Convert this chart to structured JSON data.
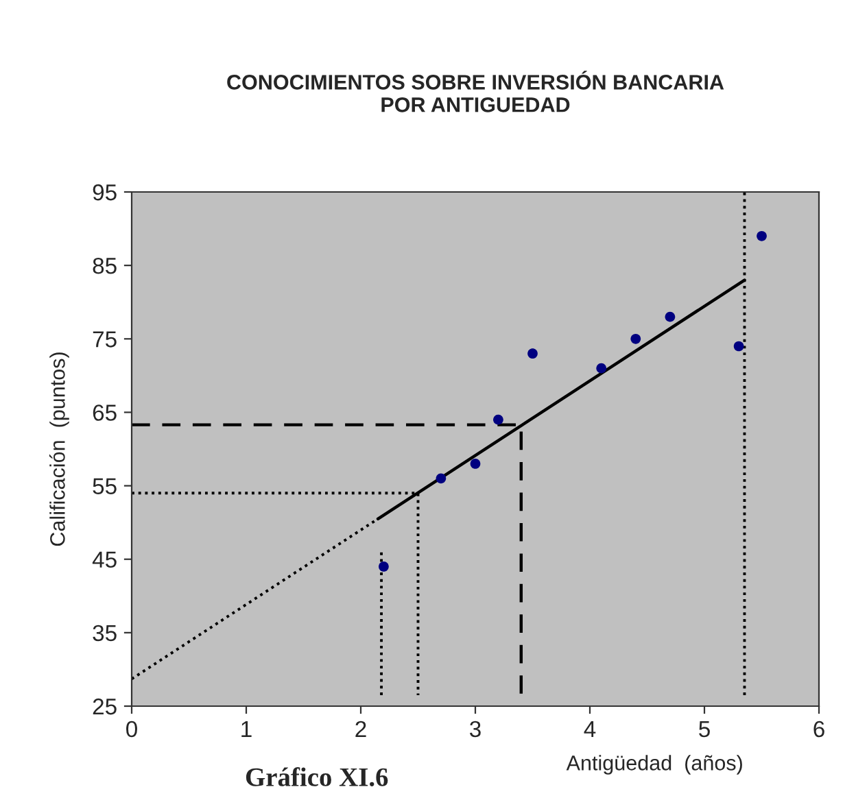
{
  "chart_data": {
    "type": "scatter",
    "title": "CONOCIMIENTOS SOBRE INVERSIÓN BANCARIA\nPOR ANTIGUEDAD",
    "xlabel": "Antigüedad  (años)",
    "ylabel": "Calificación  (puntos)",
    "annotations": [
      "Gráfico XI.6"
    ],
    "xlim": [
      0,
      6
    ],
    "xticks": [
      0,
      1,
      2,
      3,
      4,
      5,
      6
    ],
    "ylim": [
      25,
      95
    ],
    "yticks": [
      25,
      35,
      45,
      55,
      65,
      75,
      85,
      95
    ],
    "grid": false,
    "legend": false,
    "series": [
      {
        "marker": "circle",
        "color": "#000080",
        "x": [
          2.2,
          2.7,
          3.0,
          3.2,
          3.5,
          4.1,
          4.4,
          4.7,
          5.3,
          5.5
        ],
        "values": [
          44,
          56,
          58,
          64,
          73,
          71,
          75,
          78,
          74,
          89
        ]
      },
      {
        "type": "line",
        "line_style": "solid",
        "color": "#000000",
        "x": [
          2.15,
          5.35
        ],
        "values": [
          50.5,
          83
        ]
      },
      {
        "type": "line",
        "line_style": "dotted",
        "color": "#000000",
        "x": [
          0,
          2.15
        ],
        "values": [
          28.7,
          50.5
        ]
      },
      {
        "type": "line",
        "line_style": "dashed",
        "color": "#000000",
        "x": [
          0,
          3.4,
          3.4
        ],
        "values": [
          63.3,
          63.3,
          25
        ]
      },
      {
        "type": "line",
        "line_style": "dotted",
        "color": "#000000",
        "x": [
          0,
          2.5,
          2.5
        ],
        "values": [
          54,
          54,
          26.5
        ]
      },
      {
        "type": "line",
        "line_style": "dotted",
        "color": "#000000",
        "x": [
          2.18,
          2.18
        ],
        "values": [
          26.5,
          46
        ]
      },
      {
        "type": "line",
        "line_style": "dotted",
        "color": "#000000",
        "x": [
          5.35,
          5.35
        ],
        "values": [
          26.5,
          95
        ]
      }
    ]
  }
}
